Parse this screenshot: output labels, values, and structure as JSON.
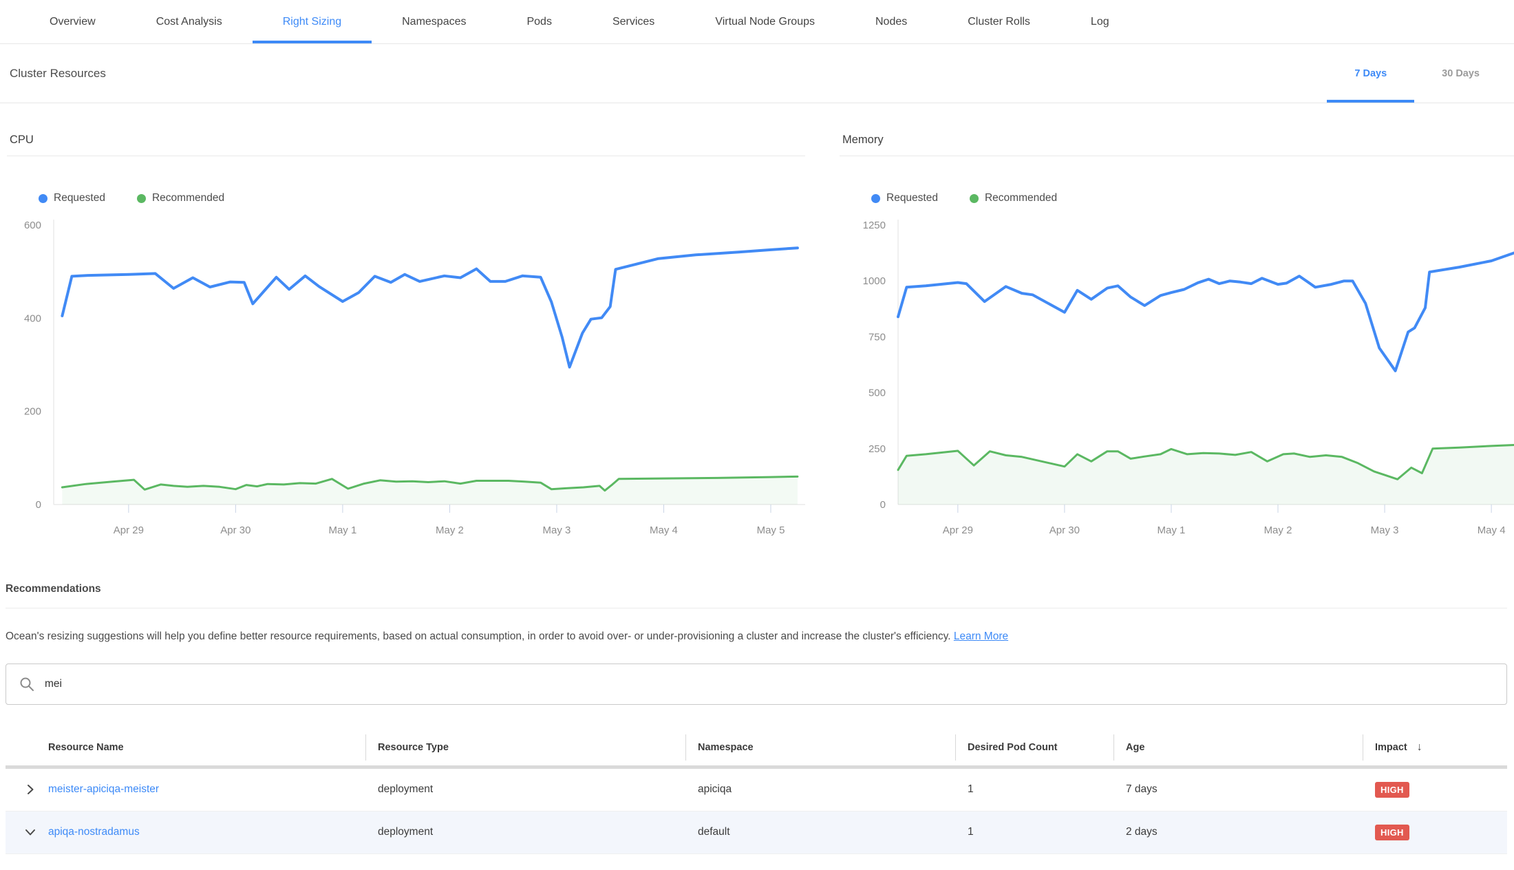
{
  "nav": {
    "active": "Right Sizing",
    "tabs": [
      {
        "label": "Overview"
      },
      {
        "label": "Cost Analysis"
      },
      {
        "label": "Right Sizing"
      },
      {
        "label": "Namespaces"
      },
      {
        "label": "Pods"
      },
      {
        "label": "Services"
      },
      {
        "label": "Virtual Node Groups"
      },
      {
        "label": "Nodes"
      },
      {
        "label": "Cluster Rolls"
      },
      {
        "label": "Log"
      }
    ]
  },
  "cluster_resources": {
    "title": "Cluster Resources",
    "range_tabs": [
      {
        "label": "7 Days",
        "active": true
      },
      {
        "label": "30 Days",
        "active": false
      }
    ]
  },
  "colors": {
    "accent_blue": "#3d8af7",
    "series_blue": "#418af5",
    "series_green": "#5bb862",
    "badge_red": "#e25950"
  },
  "chart_data": [
    {
      "id": "cpu",
      "type": "line",
      "title": "CPU",
      "xlabel": "",
      "ylabel": "",
      "grid": false,
      "legend_position": "top-left",
      "x_unit": "days (1 = Apr 29 ... 7 = May 5)",
      "ylim": [
        0,
        600
      ],
      "yticks": [
        0,
        200,
        400,
        600
      ],
      "xlim": [
        0.3,
        7.27
      ],
      "xticks": [
        {
          "label": "Apr 29",
          "x": 1
        },
        {
          "label": "Apr 30",
          "x": 2
        },
        {
          "label": "May 1",
          "x": 3
        },
        {
          "label": "May 2",
          "x": 4
        },
        {
          "label": "May 3",
          "x": 5
        },
        {
          "label": "May 4",
          "x": 6
        },
        {
          "label": "May 5",
          "x": 7
        }
      ],
      "series": [
        {
          "name": "Requested",
          "color": "#418af5",
          "fill": false,
          "points": [
            [
              0.38,
              405
            ],
            [
              0.47,
              490
            ],
            [
              0.62,
              492
            ],
            [
              1.0,
              494
            ],
            [
              1.25,
              496
            ],
            [
              1.42,
              464
            ],
            [
              1.6,
              487
            ],
            [
              1.76,
              467
            ],
            [
              1.95,
              478
            ],
            [
              2.08,
              477
            ],
            [
              2.16,
              431
            ],
            [
              2.38,
              488
            ],
            [
              2.5,
              462
            ],
            [
              2.65,
              491
            ],
            [
              2.78,
              468
            ],
            [
              3.0,
              436
            ],
            [
              3.15,
              455
            ],
            [
              3.3,
              490
            ],
            [
              3.45,
              477
            ],
            [
              3.58,
              494
            ],
            [
              3.72,
              479
            ],
            [
              3.95,
              491
            ],
            [
              4.1,
              487
            ],
            [
              4.25,
              506
            ],
            [
              4.38,
              479
            ],
            [
              4.52,
              479
            ],
            [
              4.68,
              491
            ],
            [
              4.85,
              488
            ],
            [
              4.95,
              435
            ],
            [
              5.05,
              360
            ],
            [
              5.12,
              295
            ],
            [
              5.24,
              368
            ],
            [
              5.32,
              398
            ],
            [
              5.42,
              401
            ],
            [
              5.5,
              425
            ],
            [
              5.55,
              505
            ],
            [
              5.95,
              528
            ],
            [
              6.3,
              536
            ],
            [
              6.7,
              542
            ],
            [
              7.0,
              547
            ],
            [
              7.25,
              551
            ]
          ]
        },
        {
          "name": "Recommended",
          "color": "#5bb862",
          "fill": true,
          "fill_color": "rgba(91,184,98,0.07)",
          "points": [
            [
              0.38,
              37
            ],
            [
              0.6,
              44
            ],
            [
              0.85,
              49
            ],
            [
              1.05,
              53
            ],
            [
              1.15,
              32
            ],
            [
              1.3,
              43
            ],
            [
              1.42,
              40
            ],
            [
              1.55,
              38
            ],
            [
              1.7,
              40
            ],
            [
              1.85,
              38
            ],
            [
              2.0,
              33
            ],
            [
              2.1,
              42
            ],
            [
              2.2,
              39
            ],
            [
              2.3,
              44
            ],
            [
              2.45,
              43
            ],
            [
              2.6,
              46
            ],
            [
              2.75,
              45
            ],
            [
              2.9,
              55
            ],
            [
              3.05,
              34
            ],
            [
              3.2,
              45
            ],
            [
              3.35,
              52
            ],
            [
              3.5,
              49
            ],
            [
              3.65,
              50
            ],
            [
              3.8,
              48
            ],
            [
              3.95,
              50
            ],
            [
              4.1,
              45
            ],
            [
              4.25,
              51
            ],
            [
              4.4,
              51
            ],
            [
              4.55,
              51
            ],
            [
              4.7,
              49
            ],
            [
              4.85,
              47
            ],
            [
              4.95,
              33
            ],
            [
              5.1,
              35
            ],
            [
              5.25,
              37
            ],
            [
              5.4,
              40
            ],
            [
              5.45,
              30
            ],
            [
              5.52,
              43
            ],
            [
              5.58,
              55
            ],
            [
              6.0,
              56
            ],
            [
              6.5,
              57
            ],
            [
              7.0,
              59
            ],
            [
              7.25,
              60
            ]
          ]
        }
      ]
    },
    {
      "id": "memory",
      "type": "line",
      "title": "Memory",
      "xlabel": "",
      "ylabel": "",
      "grid": false,
      "legend_position": "top-left",
      "x_unit": "days (1 = Apr 29 ... 6 = May 4)",
      "ylim": [
        0,
        1250
      ],
      "yticks": [
        0,
        250,
        500,
        750,
        1000,
        1250
      ],
      "xlim": [
        0.44,
        7.36
      ],
      "xticks": [
        {
          "label": "Apr 29",
          "x": 1
        },
        {
          "label": "Apr 30",
          "x": 2
        },
        {
          "label": "May 1",
          "x": 3
        },
        {
          "label": "May 2",
          "x": 4
        },
        {
          "label": "May 3",
          "x": 5
        },
        {
          "label": "May 4",
          "x": 6
        }
      ],
      "series": [
        {
          "name": "Requested",
          "color": "#418af5",
          "fill": false,
          "points": [
            [
              0.44,
              840
            ],
            [
              0.52,
              972
            ],
            [
              0.7,
              978
            ],
            [
              1.0,
              993
            ],
            [
              1.08,
              988
            ],
            [
              1.25,
              908
            ],
            [
              1.45,
              975
            ],
            [
              1.6,
              945
            ],
            [
              1.7,
              938
            ],
            [
              2.0,
              860
            ],
            [
              2.12,
              958
            ],
            [
              2.25,
              918
            ],
            [
              2.4,
              968
            ],
            [
              2.5,
              978
            ],
            [
              2.62,
              928
            ],
            [
              2.75,
              890
            ],
            [
              2.9,
              935
            ],
            [
              3.0,
              948
            ],
            [
              3.12,
              962
            ],
            [
              3.25,
              992
            ],
            [
              3.35,
              1008
            ],
            [
              3.45,
              988
            ],
            [
              3.55,
              1000
            ],
            [
              3.65,
              995
            ],
            [
              3.75,
              988
            ],
            [
              3.85,
              1012
            ],
            [
              4.0,
              985
            ],
            [
              4.08,
              990
            ],
            [
              4.2,
              1022
            ],
            [
              4.35,
              972
            ],
            [
              4.5,
              985
            ],
            [
              4.62,
              1000
            ],
            [
              4.7,
              1000
            ],
            [
              4.82,
              900
            ],
            [
              4.95,
              700
            ],
            [
              5.1,
              598
            ],
            [
              5.22,
              772
            ],
            [
              5.28,
              790
            ],
            [
              5.38,
              880
            ],
            [
              5.42,
              1040
            ],
            [
              5.7,
              1062
            ],
            [
              6.0,
              1090
            ],
            [
              6.3,
              1140
            ]
          ]
        },
        {
          "name": "Recommended",
          "color": "#5bb862",
          "fill": true,
          "fill_color": "rgba(91,184,98,0.08)",
          "points": [
            [
              0.44,
              155
            ],
            [
              0.52,
              218
            ],
            [
              0.7,
              225
            ],
            [
              1.0,
              240
            ],
            [
              1.15,
              175
            ],
            [
              1.3,
              238
            ],
            [
              1.45,
              220
            ],
            [
              1.6,
              213
            ],
            [
              2.0,
              170
            ],
            [
              2.12,
              225
            ],
            [
              2.25,
              193
            ],
            [
              2.4,
              238
            ],
            [
              2.5,
              238
            ],
            [
              2.62,
              205
            ],
            [
              2.75,
              215
            ],
            [
              2.9,
              225
            ],
            [
              3.0,
              248
            ],
            [
              3.15,
              225
            ],
            [
              3.3,
              230
            ],
            [
              3.45,
              228
            ],
            [
              3.6,
              222
            ],
            [
              3.75,
              235
            ],
            [
              3.9,
              193
            ],
            [
              4.05,
              225
            ],
            [
              4.15,
              228
            ],
            [
              4.3,
              213
            ],
            [
              4.45,
              220
            ],
            [
              4.6,
              213
            ],
            [
              4.75,
              185
            ],
            [
              4.9,
              148
            ],
            [
              5.0,
              132
            ],
            [
              5.12,
              113
            ],
            [
              5.25,
              165
            ],
            [
              5.35,
              140
            ],
            [
              5.45,
              250
            ],
            [
              5.7,
              255
            ],
            [
              6.0,
              262
            ],
            [
              6.3,
              268
            ]
          ]
        }
      ]
    }
  ],
  "recommendations": {
    "title": "Recommendations",
    "description": "Ocean's resizing suggestions will help you define better resource requirements, based on actual consumption, in order to avoid over- or under-provisioning a cluster and increase the cluster's efficiency.",
    "learn_more": "Learn More",
    "search": {
      "value": "mei",
      "placeholder": ""
    },
    "table": {
      "columns": [
        "Resource Name",
        "Resource Type",
        "Namespace",
        "Desired Pod Count",
        "Age",
        "Impact"
      ],
      "sort_column": "Impact",
      "sort_direction": "desc",
      "rows": [
        {
          "name": "meister-apiciqa-meister",
          "type": "deployment",
          "namespace": "apiciqa",
          "pods": "1",
          "age": "7 days",
          "impact": "HIGH",
          "expanded": false
        },
        {
          "name": "apiqa-nostradamus",
          "type": "deployment",
          "namespace": "default",
          "pods": "1",
          "age": "2 days",
          "impact": "HIGH",
          "expanded": true
        }
      ]
    }
  }
}
